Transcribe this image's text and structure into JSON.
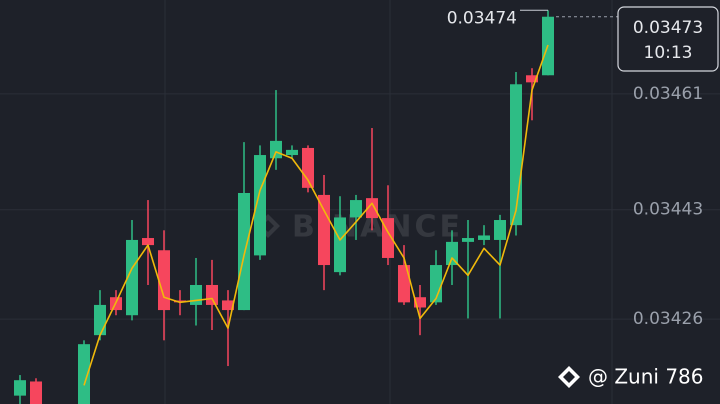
{
  "chart_data": {
    "type": "candlestick",
    "ylim": [
      0.034128,
      0.034756
    ],
    "yticks": [
      0.03461,
      0.03443,
      0.03426
    ],
    "grid": true,
    "up_color": "#2ebd85",
    "down_color": "#f6465d",
    "ma_color": "#f0b90b",
    "open": [
      0.034141,
      0.034163,
      null,
      null,
      0.034128,
      0.034235,
      0.034294,
      0.034266,
      0.034386,
      0.034367,
      0.034289,
      0.034282,
      0.034313,
      0.034289,
      0.034274,
      0.034359,
      0.03451,
      0.034515,
      0.034526,
      0.034453,
      0.034333,
      0.034418,
      0.034448,
      0.034417,
      0.034344,
      0.034294,
      0.034286,
      0.034344,
      0.03438,
      0.034383,
      0.034383,
      0.034406,
      0.034639,
      0.034639
    ],
    "high": [
      0.034173,
      0.034168,
      null,
      null,
      0.034227,
      0.034305,
      0.034305,
      0.034414,
      0.034445,
      0.034398,
      0.034305,
      0.034355,
      0.034352,
      0.034305,
      0.034535,
      0.03453,
      0.034616,
      0.03453,
      0.03453,
      0.034484,
      0.034451,
      0.034453,
      0.034557,
      0.034468,
      0.034375,
      0.034313,
      0.034367,
      0.034398,
      0.034414,
      0.034406,
      0.034422,
      0.034644,
      0.03465,
      0.03474
    ],
    "low": [
      0.034128,
      0.034128,
      null,
      null,
      0.034128,
      0.034227,
      0.034266,
      0.034258,
      0.034313,
      0.034227,
      0.034266,
      0.03425,
      0.034243,
      0.034187,
      0.034274,
      0.034352,
      0.034492,
      0.03451,
      0.034457,
      0.034305,
      0.034328,
      0.034383,
      0.034398,
      0.034344,
      0.034282,
      0.034235,
      0.034282,
      0.034313,
      0.034261,
      0.034375,
      0.034261,
      0.03439,
      0.034569,
      0.034639
    ],
    "close": [
      0.034165,
      0.034128,
      null,
      null,
      0.034221,
      0.034282,
      0.034274,
      0.034383,
      0.034375,
      0.034274,
      0.034286,
      0.034313,
      0.034282,
      0.034274,
      0.034456,
      0.034515,
      0.034537,
      0.034523,
      0.034464,
      0.034344,
      0.034418,
      0.034445,
      0.034417,
      0.034355,
      0.034286,
      0.034278,
      0.034344,
      0.03438,
      0.034386,
      0.03439,
      0.034414,
      0.034625,
      0.034628,
      0.03473
    ],
    "ma": [
      null,
      null,
      null,
      null,
      0.034157,
      0.034235,
      0.034286,
      0.034339,
      0.034375,
      0.034294,
      0.034286,
      0.034289,
      0.034292,
      0.034246,
      0.034359,
      0.03446,
      0.03452,
      0.03451,
      0.034476,
      0.034429,
      0.034383,
      0.034411,
      0.03444,
      0.034395,
      0.034355,
      0.034261,
      0.034292,
      0.034355,
      0.034328,
      0.03437,
      0.034344,
      0.034429,
      0.034616,
      0.034686
    ],
    "high_label": 0.03474,
    "last_price": {
      "value": 0.03473,
      "time": "10:13"
    },
    "watermark": "BINANCE",
    "credit": "@ Zuni 786"
  }
}
